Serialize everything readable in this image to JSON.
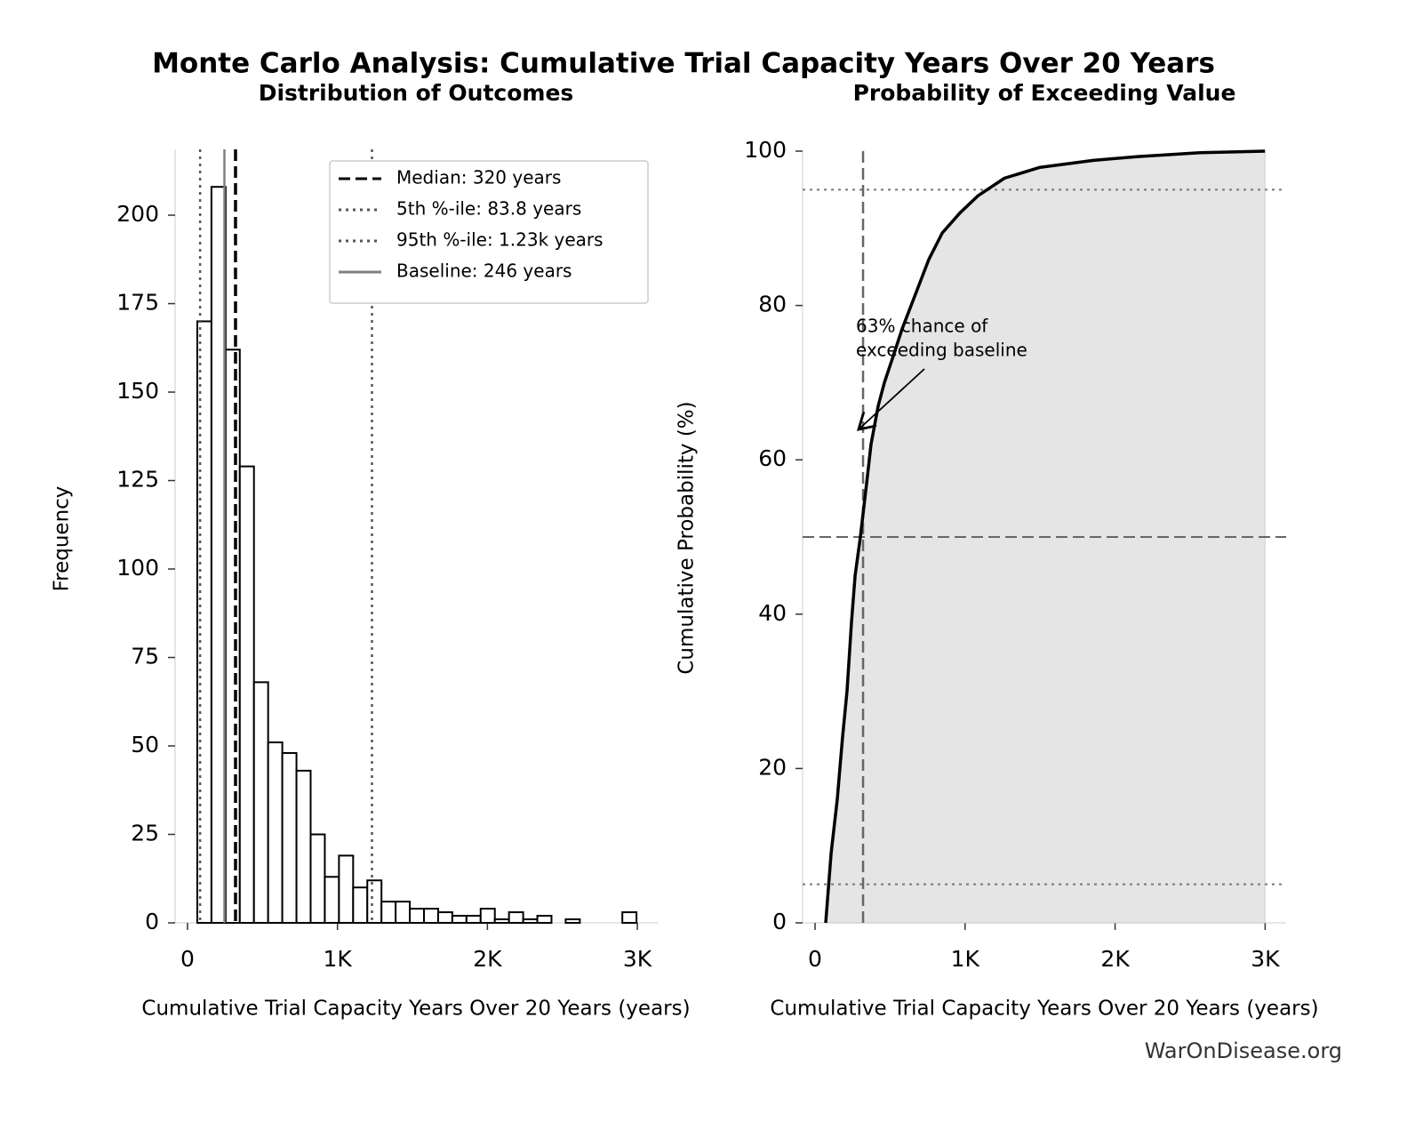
{
  "title": "Monte Carlo Analysis: Cumulative Trial Capacity Years Over 20 Years",
  "watermark": "WarOnDisease.org",
  "chart_data": [
    {
      "type": "histogram",
      "title": "Distribution of Outcomes",
      "xlabel": "Cumulative Trial Capacity Years Over 20 Years (years)",
      "ylabel": "Frequency",
      "bins": [
        65,
        159.5,
        254,
        348.5,
        443,
        537.5,
        632,
        726.5,
        821,
        915.5,
        1010,
        1104.5,
        1199,
        1293.5,
        1388,
        1482.5,
        1577,
        1671.5,
        1766,
        1860.5,
        1955,
        2049.5,
        2144,
        2238.5,
        2333,
        2427.5,
        2522,
        2616.5,
        2711,
        2805.5,
        2900,
        2994.5
      ],
      "values": [
        170,
        208,
        162,
        129,
        68,
        51,
        48,
        43,
        25,
        13,
        19,
        10,
        12,
        6,
        6,
        4,
        4,
        3,
        2,
        2,
        4,
        1,
        3,
        1,
        2,
        0,
        1,
        0,
        0,
        0,
        3
      ],
      "color": "#ffffff",
      "edgecolor": "#000000",
      "xlim": [
        -83,
        3136
      ],
      "ylim": [
        0,
        218.6
      ],
      "xticks": [
        0,
        {
          "value": 1000,
          "label": "1K"
        },
        {
          "value": 2000,
          "label": "2K"
        },
        {
          "value": 3000,
          "label": "3K"
        }
      ],
      "yticks": [
        0,
        25,
        50,
        75,
        100,
        125,
        150,
        175,
        200
      ],
      "vlines": [
        {
          "name": "Median: 320 years",
          "value": 320,
          "color": "#000000",
          "style": "dashed"
        },
        {
          "name": "5th %-ile: 83.8 years",
          "value": 83.8,
          "color": "#555555",
          "style": "dotted"
        },
        {
          "name": "95th %-ile: 1.23k years",
          "value": 1230,
          "color": "#555555",
          "style": "dotted"
        },
        {
          "name": "Baseline: 246 years",
          "value": 246,
          "color": "#808080",
          "style": "solid"
        }
      ],
      "legend": "upper right"
    },
    {
      "type": "line",
      "title": "Probability of Exceeding Value",
      "xlabel": "Cumulative Trial Capacity Years Over 20 Years (years)",
      "ylabel": "Cumulative Probability (%)",
      "x": [
        71,
        107,
        148,
        183,
        213,
        243,
        267,
        302,
        344,
        373,
        421,
        462,
        522,
        581,
        670,
        759,
        848,
        966,
        1085,
        1263,
        1500,
        1855,
        2152,
        2567,
        2999
      ],
      "series": [
        {
          "color": "#000000",
          "fill": "#e5e5e5",
          "values": [
            0,
            9,
            16,
            24,
            30,
            39,
            45,
            50,
            57,
            62,
            67,
            70,
            73.5,
            77,
            81.5,
            86,
            89.4,
            92,
            94.2,
            96.5,
            97.9,
            98.8,
            99.3,
            99.8,
            100
          ]
        }
      ],
      "xlim": [
        -83,
        3140
      ],
      "ylim": [
        0,
        100
      ],
      "xticks": [
        0,
        {
          "value": 1000,
          "label": "1K"
        },
        {
          "value": 2000,
          "label": "2K"
        },
        {
          "value": 3000,
          "label": "3K"
        }
      ],
      "yticks": [
        0,
        20,
        40,
        60,
        80,
        100
      ],
      "hlines": [
        {
          "value": 95,
          "color": "#777777",
          "style": "dotted"
        },
        {
          "value": 50,
          "color": "#666666",
          "style": "dashed"
        },
        {
          "value": 5,
          "color": "#777777",
          "style": "dotted"
        }
      ],
      "vlines": [
        {
          "value": 320,
          "color": "#666666",
          "style": "dashed"
        }
      ],
      "annotation": [
        "63% chance of",
        "exceeding baseline"
      ]
    }
  ]
}
